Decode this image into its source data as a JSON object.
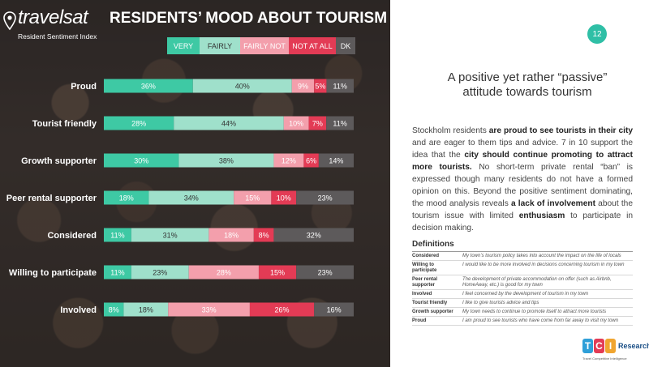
{
  "brand": {
    "logo_text": "travelsat",
    "logo_subtitle": "Resident Sentiment Index"
  },
  "page_number": "12",
  "colors": {
    "very": "#3ec9a4",
    "fairly": "#9fe0cb",
    "fairly_not": "#f39fac",
    "not_at_all": "#e33b55",
    "dk": "#5d5a5b",
    "accent": "#2fbfa6"
  },
  "legend": [
    {
      "label": "VERY",
      "color": "#3ec9a4",
      "text_color": "#ffffff"
    },
    {
      "label": "FAIRLY",
      "color": "#9fe0cb",
      "text_color": "#333333"
    },
    {
      "label": "FAIRLY NOT",
      "color": "#f39fac",
      "text_color": "#ffffff"
    },
    {
      "label": "NOT AT ALL",
      "color": "#e33b55",
      "text_color": "#ffffff"
    },
    {
      "label": "DK",
      "color": "#5d5a5b",
      "text_color": "#ffffff"
    }
  ],
  "chart_data": {
    "type": "bar",
    "orientation": "horizontal",
    "stacked": true,
    "percent": true,
    "title": "RESIDENTS’ MOOD ABOUT TOURISM",
    "categories": [
      "Proud",
      "Tourist friendly",
      "Growth supporter",
      "Peer rental supporter",
      "Considered",
      "Willing to participate",
      "Involved"
    ],
    "series": [
      {
        "name": "VERY",
        "values": [
          36,
          28,
          30,
          18,
          11,
          11,
          8
        ]
      },
      {
        "name": "FAIRLY",
        "values": [
          40,
          44,
          38,
          34,
          31,
          23,
          18
        ]
      },
      {
        "name": "FAIRLY NOT",
        "values": [
          9,
          10,
          12,
          15,
          18,
          28,
          33
        ]
      },
      {
        "name": "NOT AT ALL",
        "values": [
          5,
          7,
          6,
          10,
          8,
          15,
          26
        ]
      },
      {
        "name": "DK",
        "values": [
          11,
          11,
          14,
          23,
          32,
          23,
          16
        ]
      }
    ],
    "legend_position": "top",
    "grid": false
  },
  "right": {
    "headline_line1": "A positive yet rather “passive”",
    "headline_line2": "attitude towards tourism",
    "body": [
      {
        "t": "Stockholm residents ",
        "b": false
      },
      {
        "t": "are proud to see tourists in their city",
        "b": true
      },
      {
        "t": " and are eager to them tips and advice. 7 in 10 support the idea that the ",
        "b": false
      },
      {
        "t": "city should continue promoting to attract more tourists.",
        "b": true
      },
      {
        "t": " No short-term private rental “ban” is expressed though many residents do not have a formed opinion on this. Beyond the positive sentiment dominating, the mood analysis reveals ",
        "b": false
      },
      {
        "t": "a lack of involvement",
        "b": true
      },
      {
        "t": " about the tourism issue with limited ",
        "b": false
      },
      {
        "t": "enthusiasm",
        "b": true
      },
      {
        "t": " to participate in decision making.",
        "b": false
      }
    ],
    "definitions_title": "Definitions",
    "definitions": [
      {
        "term": "Considered",
        "desc": "My town’s tourism policy takes into account the impact on the life of locals"
      },
      {
        "term": "Willing to participate",
        "desc": "I would like to be more involved in decisions concerning tourism in my town"
      },
      {
        "term": "Peer rental supporter",
        "desc": "The development of private accommodation on offer (such as Airbnb, HomeAway, etc.) is good for my town"
      },
      {
        "term": "Involved",
        "desc": "I feel concerned by the development of tourism in my town"
      },
      {
        "term": "Tourist friendly",
        "desc": "I like to give tourists advice and tips"
      },
      {
        "term": "Growth supporter",
        "desc": "My town needs to continue to promote itself to attract more tourists"
      },
      {
        "term": "Proud",
        "desc": "I am proud to see tourists who have come from far away to visit my town"
      }
    ]
  },
  "tci_logo": {
    "letters": [
      "T",
      "C",
      "I"
    ],
    "letter_colors": [
      "#2f9fd8",
      "#e33b55",
      "#f0a530"
    ],
    "word": "Research",
    "tagline": "Travel Competitive Intelligence"
  }
}
